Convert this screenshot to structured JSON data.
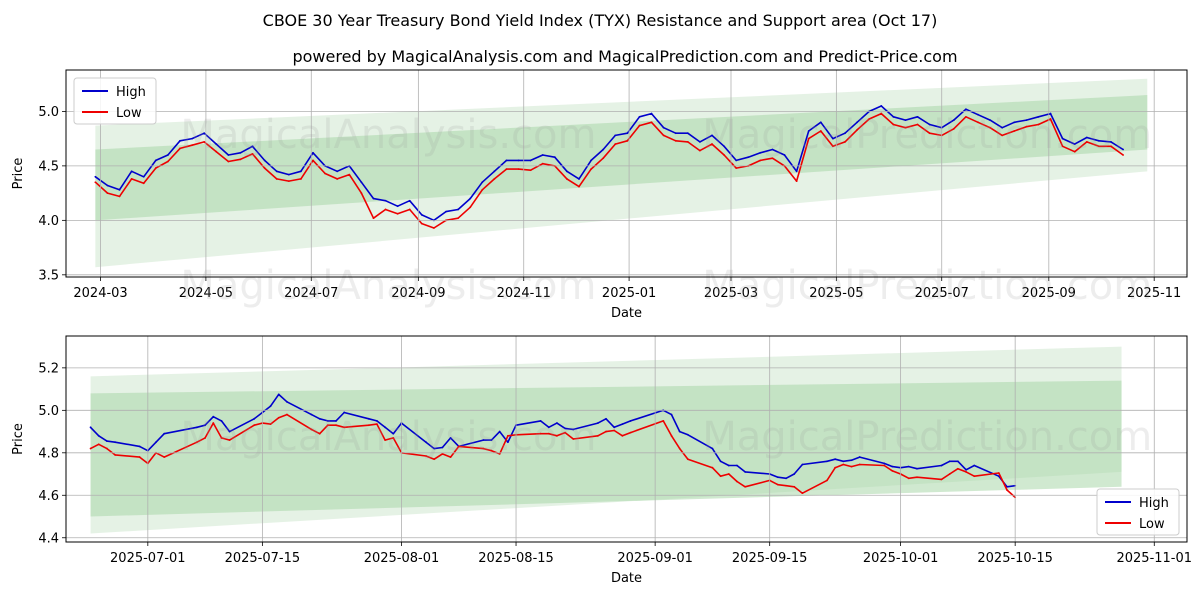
{
  "title": "CBOE 30 Year Treasury Bond Yield Index (TYX) Resistance and Support area (Oct 17)",
  "subtitle": "powered by MagicalAnalysis.com and MagicalPrediction.com and Predict-Price.com",
  "colors": {
    "high": "#0000cc",
    "low": "#ee0000",
    "band_outer": "#cfe8cf",
    "band_inner": "#a9d7a9",
    "grid": "#b0b0b0"
  },
  "chart_data": [
    {
      "type": "line",
      "xlabel": "Date",
      "ylabel": "Price",
      "xlim": [
        "2024-02-10",
        "2025-11-20"
      ],
      "ylim": [
        3.48,
        5.38
      ],
      "xticks": [
        "2024-03",
        "2024-05",
        "2024-07",
        "2024-09",
        "2024-11",
        "2025-01",
        "2025-03",
        "2025-05",
        "2025-07",
        "2025-09",
        "2025-11"
      ],
      "yticks": [
        "3.5",
        "4.0",
        "4.5",
        "5.0"
      ],
      "legend": {
        "position": "top-left",
        "entries": [
          "High",
          "Low"
        ]
      },
      "watermark": [
        "MagicalAnalysis.com",
        "MagicalPrediction.com"
      ],
      "band_outer": {
        "x": [
          "2024-02-27",
          "2025-10-28"
        ],
        "upper": [
          4.87,
          5.3
        ],
        "lower": [
          3.57,
          4.45
        ]
      },
      "band_inner": {
        "x": [
          "2024-02-27",
          "2025-10-28"
        ],
        "upper": [
          4.65,
          5.15
        ],
        "lower": [
          4.0,
          4.65
        ]
      },
      "series": [
        {
          "name": "High",
          "x": [
            "2024-02-27",
            "2024-03-05",
            "2024-03-12",
            "2024-03-19",
            "2024-03-26",
            "2024-04-02",
            "2024-04-09",
            "2024-04-16",
            "2024-04-23",
            "2024-04-30",
            "2024-05-07",
            "2024-05-14",
            "2024-05-21",
            "2024-05-28",
            "2024-06-04",
            "2024-06-11",
            "2024-06-18",
            "2024-06-25",
            "2024-07-02",
            "2024-07-09",
            "2024-07-16",
            "2024-07-23",
            "2024-07-30",
            "2024-08-06",
            "2024-08-13",
            "2024-08-20",
            "2024-08-27",
            "2024-09-03",
            "2024-09-10",
            "2024-09-17",
            "2024-09-24",
            "2024-10-01",
            "2024-10-08",
            "2024-10-15",
            "2024-10-22",
            "2024-10-29",
            "2024-11-05",
            "2024-11-12",
            "2024-11-19",
            "2024-11-26",
            "2024-12-03",
            "2024-12-10",
            "2024-12-17",
            "2024-12-24",
            "2024-12-31",
            "2025-01-07",
            "2025-01-14",
            "2025-01-21",
            "2025-01-28",
            "2025-02-04",
            "2025-02-11",
            "2025-02-18",
            "2025-02-25",
            "2025-03-04",
            "2025-03-11",
            "2025-03-18",
            "2025-03-25",
            "2025-04-01",
            "2025-04-08",
            "2025-04-15",
            "2025-04-22",
            "2025-04-29",
            "2025-05-06",
            "2025-05-13",
            "2025-05-20",
            "2025-05-27",
            "2025-06-03",
            "2025-06-10",
            "2025-06-17",
            "2025-06-24",
            "2025-07-01",
            "2025-07-08",
            "2025-07-15",
            "2025-07-22",
            "2025-07-29",
            "2025-08-05",
            "2025-08-12",
            "2025-08-19",
            "2025-08-26",
            "2025-09-02",
            "2025-09-09",
            "2025-09-16",
            "2025-09-23",
            "2025-09-30",
            "2025-10-07",
            "2025-10-14"
          ],
          "values": [
            4.4,
            4.32,
            4.28,
            4.45,
            4.4,
            4.55,
            4.6,
            4.73,
            4.75,
            4.8,
            4.7,
            4.6,
            4.62,
            4.68,
            4.55,
            4.45,
            4.42,
            4.45,
            4.62,
            4.5,
            4.45,
            4.5,
            4.35,
            4.2,
            4.18,
            4.13,
            4.18,
            4.05,
            4.0,
            4.08,
            4.1,
            4.2,
            4.35,
            4.45,
            4.55,
            4.55,
            4.55,
            4.6,
            4.58,
            4.45,
            4.38,
            4.55,
            4.65,
            4.78,
            4.8,
            4.95,
            4.98,
            4.85,
            4.8,
            4.8,
            4.72,
            4.78,
            4.68,
            4.55,
            4.58,
            4.62,
            4.65,
            4.6,
            4.45,
            4.82,
            4.9,
            4.75,
            4.8,
            4.9,
            5.0,
            5.05,
            4.95,
            4.92,
            4.95,
            4.88,
            4.85,
            4.92,
            5.02,
            4.97,
            4.92,
            4.85,
            4.9,
            4.92,
            4.95,
            4.98,
            4.75,
            4.7,
            4.76,
            4.73,
            4.72,
            4.65
          ]
        },
        {
          "name": "Low",
          "x": [
            "2024-02-27",
            "2024-03-05",
            "2024-03-12",
            "2024-03-19",
            "2024-03-26",
            "2024-04-02",
            "2024-04-09",
            "2024-04-16",
            "2024-04-23",
            "2024-04-30",
            "2024-05-07",
            "2024-05-14",
            "2024-05-21",
            "2024-05-28",
            "2024-06-04",
            "2024-06-11",
            "2024-06-18",
            "2024-06-25",
            "2024-07-02",
            "2024-07-09",
            "2024-07-16",
            "2024-07-23",
            "2024-07-30",
            "2024-08-06",
            "2024-08-13",
            "2024-08-20",
            "2024-08-27",
            "2024-09-03",
            "2024-09-10",
            "2024-09-17",
            "2024-09-24",
            "2024-10-01",
            "2024-10-08",
            "2024-10-15",
            "2024-10-22",
            "2024-10-29",
            "2024-11-05",
            "2024-11-12",
            "2024-11-19",
            "2024-11-26",
            "2024-12-03",
            "2024-12-10",
            "2024-12-17",
            "2024-12-24",
            "2024-12-31",
            "2025-01-07",
            "2025-01-14",
            "2025-01-21",
            "2025-01-28",
            "2025-02-04",
            "2025-02-11",
            "2025-02-18",
            "2025-02-25",
            "2025-03-04",
            "2025-03-11",
            "2025-03-18",
            "2025-03-25",
            "2025-04-01",
            "2025-04-08",
            "2025-04-15",
            "2025-04-22",
            "2025-04-29",
            "2025-05-06",
            "2025-05-13",
            "2025-05-20",
            "2025-05-27",
            "2025-06-03",
            "2025-06-10",
            "2025-06-17",
            "2025-06-24",
            "2025-07-01",
            "2025-07-08",
            "2025-07-15",
            "2025-07-22",
            "2025-07-29",
            "2025-08-05",
            "2025-08-12",
            "2025-08-19",
            "2025-08-26",
            "2025-09-02",
            "2025-09-09",
            "2025-09-16",
            "2025-09-23",
            "2025-09-30",
            "2025-10-07",
            "2025-10-14"
          ],
          "values": [
            4.35,
            4.25,
            4.22,
            4.38,
            4.34,
            4.48,
            4.54,
            4.66,
            4.69,
            4.72,
            4.63,
            4.54,
            4.56,
            4.61,
            4.48,
            4.38,
            4.36,
            4.38,
            4.55,
            4.43,
            4.38,
            4.42,
            4.25,
            4.02,
            4.1,
            4.06,
            4.1,
            3.97,
            3.93,
            4.0,
            4.02,
            4.12,
            4.28,
            4.38,
            4.47,
            4.47,
            4.46,
            4.52,
            4.5,
            4.38,
            4.31,
            4.47,
            4.57,
            4.7,
            4.73,
            4.87,
            4.9,
            4.78,
            4.73,
            4.72,
            4.64,
            4.7,
            4.6,
            4.48,
            4.5,
            4.55,
            4.57,
            4.5,
            4.36,
            4.75,
            4.82,
            4.68,
            4.72,
            4.83,
            4.93,
            4.98,
            4.88,
            4.85,
            4.88,
            4.8,
            4.78,
            4.84,
            4.95,
            4.9,
            4.85,
            4.78,
            4.82,
            4.86,
            4.88,
            4.93,
            4.68,
            4.63,
            4.72,
            4.68,
            4.68,
            4.6
          ]
        }
      ]
    },
    {
      "type": "line",
      "xlabel": "Date",
      "ylabel": "Price",
      "xlim": [
        "2025-06-21",
        "2025-11-05"
      ],
      "ylim": [
        4.38,
        5.35
      ],
      "xticks": [
        "2025-07-01",
        "2025-07-15",
        "2025-08-01",
        "2025-08-15",
        "2025-09-01",
        "2025-09-15",
        "2025-10-01",
        "2025-10-15",
        "2025-11-01"
      ],
      "yticks": [
        "4.4",
        "4.6",
        "4.8",
        "5.0",
        "5.2"
      ],
      "legend": {
        "position": "bottom-right",
        "entries": [
          "High",
          "Low"
        ]
      },
      "watermark": [
        "MagicalAnalysis.com",
        "MagicalPrediction.com"
      ],
      "band_outer": {
        "x": [
          "2025-06-24",
          "2025-10-28"
        ],
        "upper": [
          5.16,
          5.3
        ],
        "lower": [
          4.42,
          4.71
        ]
      },
      "band_inner": {
        "x": [
          "2025-06-24",
          "2025-10-28"
        ],
        "upper": [
          5.08,
          5.14
        ],
        "lower": [
          4.5,
          4.64
        ]
      },
      "series": [
        {
          "name": "High",
          "x": [
            "2025-06-24",
            "2025-06-25",
            "2025-06-26",
            "2025-06-27",
            "2025-06-30",
            "2025-07-01",
            "2025-07-02",
            "2025-07-03",
            "2025-07-07",
            "2025-07-08",
            "2025-07-09",
            "2025-07-10",
            "2025-07-11",
            "2025-07-14",
            "2025-07-15",
            "2025-07-16",
            "2025-07-17",
            "2025-07-18",
            "2025-07-21",
            "2025-07-22",
            "2025-07-23",
            "2025-07-24",
            "2025-07-25",
            "2025-07-28",
            "2025-07-29",
            "2025-07-30",
            "2025-07-31",
            "2025-08-01",
            "2025-08-04",
            "2025-08-05",
            "2025-08-06",
            "2025-08-07",
            "2025-08-08",
            "2025-08-11",
            "2025-08-12",
            "2025-08-13",
            "2025-08-14",
            "2025-08-15",
            "2025-08-18",
            "2025-08-19",
            "2025-08-20",
            "2025-08-21",
            "2025-08-22",
            "2025-08-25",
            "2025-08-26",
            "2025-08-27",
            "2025-08-28",
            "2025-08-29",
            "2025-09-02",
            "2025-09-03",
            "2025-09-04",
            "2025-09-05",
            "2025-09-08",
            "2025-09-09",
            "2025-09-10",
            "2025-09-11",
            "2025-09-12",
            "2025-09-15",
            "2025-09-16",
            "2025-09-17",
            "2025-09-18",
            "2025-09-19",
            "2025-09-22",
            "2025-09-23",
            "2025-09-24",
            "2025-09-25",
            "2025-09-26",
            "2025-09-29",
            "2025-09-30",
            "2025-10-01",
            "2025-10-02",
            "2025-10-03",
            "2025-10-06",
            "2025-10-07",
            "2025-10-08",
            "2025-10-09",
            "2025-10-10",
            "2025-10-13",
            "2025-10-14",
            "2025-10-15"
          ],
          "values": [
            4.92,
            4.88,
            4.855,
            4.85,
            4.83,
            4.81,
            4.85,
            4.89,
            4.92,
            4.93,
            4.97,
            4.95,
            4.9,
            4.96,
            4.99,
            5.02,
            5.075,
            5.04,
            4.98,
            4.96,
            4.95,
            4.95,
            4.99,
            4.96,
            4.95,
            4.92,
            4.89,
            4.94,
            4.85,
            4.82,
            4.825,
            4.87,
            4.83,
            4.86,
            4.86,
            4.9,
            4.85,
            4.93,
            4.95,
            4.92,
            4.94,
            4.915,
            4.91,
            4.94,
            4.96,
            4.92,
            4.935,
            4.95,
            5.0,
            4.98,
            4.9,
            4.885,
            4.82,
            4.76,
            4.74,
            4.74,
            4.71,
            4.7,
            4.685,
            4.68,
            4.7,
            4.745,
            4.76,
            4.77,
            4.76,
            4.765,
            4.78,
            4.75,
            4.735,
            4.73,
            4.735,
            4.725,
            4.74,
            4.76,
            4.76,
            4.72,
            4.74,
            4.69,
            4.64,
            4.645
          ]
        },
        {
          "name": "Low",
          "x": [
            "2025-06-24",
            "2025-06-25",
            "2025-06-26",
            "2025-06-27",
            "2025-06-30",
            "2025-07-01",
            "2025-07-02",
            "2025-07-03",
            "2025-07-07",
            "2025-07-08",
            "2025-07-09",
            "2025-07-10",
            "2025-07-11",
            "2025-07-14",
            "2025-07-15",
            "2025-07-16",
            "2025-07-17",
            "2025-07-18",
            "2025-07-21",
            "2025-07-22",
            "2025-07-23",
            "2025-07-24",
            "2025-07-25",
            "2025-07-28",
            "2025-07-29",
            "2025-07-30",
            "2025-07-31",
            "2025-08-01",
            "2025-08-04",
            "2025-08-05",
            "2025-08-06",
            "2025-08-07",
            "2025-08-08",
            "2025-08-11",
            "2025-08-12",
            "2025-08-13",
            "2025-08-14",
            "2025-08-15",
            "2025-08-18",
            "2025-08-19",
            "2025-08-20",
            "2025-08-21",
            "2025-08-22",
            "2025-08-25",
            "2025-08-26",
            "2025-08-27",
            "2025-08-28",
            "2025-08-29",
            "2025-09-02",
            "2025-09-03",
            "2025-09-04",
            "2025-09-05",
            "2025-09-08",
            "2025-09-09",
            "2025-09-10",
            "2025-09-11",
            "2025-09-12",
            "2025-09-15",
            "2025-09-16",
            "2025-09-17",
            "2025-09-18",
            "2025-09-19",
            "2025-09-22",
            "2025-09-23",
            "2025-09-24",
            "2025-09-25",
            "2025-09-26",
            "2025-09-29",
            "2025-09-30",
            "2025-10-01",
            "2025-10-02",
            "2025-10-03",
            "2025-10-06",
            "2025-10-07",
            "2025-10-08",
            "2025-10-09",
            "2025-10-10",
            "2025-10-13",
            "2025-10-14",
            "2025-10-15"
          ],
          "values": [
            4.82,
            4.84,
            4.82,
            4.79,
            4.78,
            4.75,
            4.8,
            4.78,
            4.85,
            4.87,
            4.94,
            4.87,
            4.86,
            4.93,
            4.94,
            4.935,
            4.965,
            4.98,
            4.91,
            4.89,
            4.93,
            4.93,
            4.92,
            4.93,
            4.935,
            4.86,
            4.87,
            4.8,
            4.785,
            4.77,
            4.795,
            4.78,
            4.83,
            4.82,
            4.81,
            4.795,
            4.88,
            4.885,
            4.89,
            4.89,
            4.88,
            4.895,
            4.865,
            4.88,
            4.9,
            4.905,
            4.88,
            4.895,
            4.95,
            4.88,
            4.82,
            4.77,
            4.73,
            4.69,
            4.7,
            4.665,
            4.64,
            4.67,
            4.65,
            4.645,
            4.64,
            4.61,
            4.67,
            4.73,
            4.745,
            4.735,
            4.745,
            4.74,
            4.715,
            4.7,
            4.68,
            4.685,
            4.675,
            4.7,
            4.725,
            4.71,
            4.69,
            4.705,
            4.625,
            4.59
          ]
        }
      ]
    }
  ]
}
